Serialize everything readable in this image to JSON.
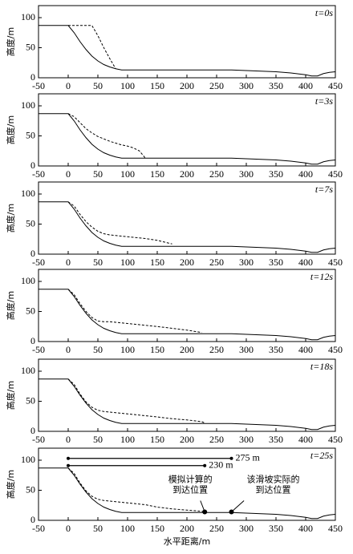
{
  "chart_data": [
    {
      "type": "line",
      "annotation": "t=0s",
      "ylabel": "高度/m",
      "x": [
        -50,
        0,
        10,
        20,
        30,
        40,
        50,
        60,
        70,
        80,
        90,
        100,
        110,
        120,
        130,
        150,
        175,
        200,
        225,
        230,
        250,
        275,
        300,
        325,
        350,
        375,
        400,
        410,
        420,
        430,
        440,
        450
      ],
      "series": [
        {
          "color": "#000000",
          "dash": false,
          "values": [
            87,
            87,
            75,
            60,
            47,
            36,
            28,
            22,
            18,
            15,
            13,
            13,
            13,
            13,
            13,
            13,
            13,
            13,
            13,
            13,
            13,
            13,
            12,
            11,
            10,
            8,
            5,
            3,
            3,
            7,
            9,
            10
          ]
        },
        {
          "color": "#000000",
          "dash": true,
          "values": [
            null,
            87,
            87,
            87,
            87,
            87,
            70,
            50,
            32,
            15,
            null,
            null,
            null,
            null,
            null,
            null,
            null,
            null,
            null,
            null,
            null,
            null,
            null,
            null,
            null,
            null,
            null,
            null,
            null,
            null,
            null,
            null
          ]
        }
      ],
      "xlim": [
        -50,
        450
      ],
      "xticks": [
        -50,
        0,
        50,
        100,
        150,
        200,
        250,
        300,
        350,
        400,
        450
      ],
      "ylim": [
        0,
        120
      ],
      "yticks": [
        0,
        50,
        100
      ]
    },
    {
      "type": "line",
      "annotation": "t=3s",
      "ylabel": "高度/m",
      "x": [
        -50,
        0,
        10,
        20,
        30,
        40,
        50,
        60,
        70,
        80,
        90,
        100,
        110,
        120,
        130,
        150,
        175,
        200,
        225,
        230,
        250,
        275,
        300,
        325,
        350,
        375,
        400,
        410,
        420,
        430,
        440,
        450
      ],
      "series": [
        {
          "color": "#000000",
          "dash": false,
          "values": [
            87,
            87,
            75,
            60,
            47,
            36,
            28,
            22,
            18,
            15,
            13,
            13,
            13,
            13,
            13,
            13,
            13,
            13,
            13,
            13,
            13,
            13,
            12,
            11,
            10,
            8,
            5,
            3,
            3,
            7,
            9,
            10
          ]
        },
        {
          "color": "#000000",
          "dash": true,
          "values": [
            null,
            87,
            82,
            72,
            62,
            55,
            49,
            45,
            41,
            38,
            35,
            33,
            30,
            25,
            13,
            null,
            null,
            null,
            null,
            null,
            null,
            null,
            null,
            null,
            null,
            null,
            null,
            null,
            null,
            null,
            null,
            null
          ]
        }
      ],
      "xlim": [
        -50,
        450
      ],
      "xticks": [
        -50,
        0,
        50,
        100,
        150,
        200,
        250,
        300,
        350,
        400,
        450
      ],
      "ylim": [
        0,
        120
      ],
      "yticks": [
        0,
        50,
        100
      ]
    },
    {
      "type": "line",
      "annotation": "t=7s",
      "ylabel": "高度/m",
      "x": [
        -50,
        0,
        10,
        20,
        30,
        40,
        50,
        60,
        70,
        80,
        90,
        100,
        110,
        120,
        130,
        150,
        175,
        200,
        225,
        230,
        250,
        275,
        300,
        325,
        350,
        375,
        400,
        410,
        420,
        430,
        440,
        450
      ],
      "series": [
        {
          "color": "#000000",
          "dash": false,
          "values": [
            87,
            87,
            75,
            60,
            47,
            36,
            28,
            22,
            18,
            15,
            13,
            13,
            13,
            13,
            13,
            13,
            13,
            13,
            13,
            13,
            13,
            13,
            12,
            11,
            10,
            8,
            5,
            3,
            3,
            7,
            9,
            10
          ]
        },
        {
          "color": "#000000",
          "dash": true,
          "values": [
            null,
            87,
            80,
            66,
            54,
            45,
            38,
            34,
            32,
            31,
            30,
            29,
            28,
            27,
            26,
            23,
            17,
            null,
            null,
            null,
            null,
            null,
            null,
            null,
            null,
            null,
            null,
            null,
            null,
            null,
            null,
            null
          ]
        }
      ],
      "xlim": [
        -50,
        450
      ],
      "xticks": [
        -50,
        0,
        50,
        100,
        150,
        200,
        250,
        300,
        350,
        400,
        450
      ],
      "ylim": [
        0,
        120
      ],
      "yticks": [
        0,
        50,
        100
      ]
    },
    {
      "type": "line",
      "annotation": "t=12s",
      "ylabel": "高度/m",
      "x": [
        -50,
        0,
        10,
        20,
        30,
        40,
        50,
        60,
        70,
        80,
        90,
        100,
        110,
        120,
        130,
        150,
        175,
        200,
        225,
        230,
        250,
        275,
        300,
        325,
        350,
        375,
        400,
        410,
        420,
        430,
        440,
        450
      ],
      "series": [
        {
          "color": "#000000",
          "dash": false,
          "values": [
            87,
            87,
            75,
            60,
            47,
            36,
            28,
            22,
            18,
            15,
            13,
            13,
            13,
            13,
            13,
            13,
            13,
            13,
            13,
            13,
            13,
            13,
            12,
            11,
            10,
            8,
            5,
            3,
            3,
            7,
            9,
            10
          ]
        },
        {
          "color": "#000000",
          "dash": true,
          "values": [
            null,
            87,
            78,
            63,
            50,
            40,
            34,
            33,
            33,
            32,
            31,
            30,
            29,
            28,
            27,
            25,
            22,
            19,
            15,
            null,
            null,
            null,
            null,
            null,
            null,
            null,
            null,
            null,
            null,
            null,
            null,
            null
          ]
        }
      ],
      "xlim": [
        -50,
        450
      ],
      "xticks": [
        -50,
        0,
        50,
        100,
        150,
        200,
        250,
        300,
        350,
        400,
        450
      ],
      "ylim": [
        0,
        120
      ],
      "yticks": [
        0,
        50,
        100
      ]
    },
    {
      "type": "line",
      "annotation": "t=18s",
      "ylabel": "高度/m",
      "x": [
        -50,
        0,
        10,
        20,
        30,
        40,
        50,
        60,
        70,
        80,
        90,
        100,
        110,
        120,
        130,
        150,
        175,
        200,
        225,
        230,
        250,
        275,
        300,
        325,
        350,
        375,
        400,
        410,
        420,
        430,
        440,
        450
      ],
      "series": [
        {
          "color": "#000000",
          "dash": false,
          "values": [
            87,
            87,
            75,
            60,
            47,
            36,
            28,
            22,
            18,
            15,
            13,
            13,
            13,
            13,
            13,
            13,
            13,
            13,
            13,
            13,
            13,
            13,
            12,
            11,
            10,
            8,
            5,
            3,
            3,
            7,
            9,
            10
          ]
        },
        {
          "color": "#000000",
          "dash": true,
          "values": [
            null,
            87,
            78,
            62,
            49,
            40,
            35,
            33,
            32,
            31,
            30,
            29,
            28,
            27,
            26,
            24,
            21,
            19,
            16,
            14,
            null,
            null,
            null,
            null,
            null,
            null,
            null,
            null,
            null,
            null,
            null,
            null
          ]
        }
      ],
      "xlim": [
        -50,
        450
      ],
      "xticks": [
        -50,
        0,
        50,
        100,
        150,
        200,
        250,
        300,
        350,
        400,
        450
      ],
      "ylim": [
        0,
        120
      ],
      "yticks": [
        0,
        50,
        100
      ]
    },
    {
      "type": "line",
      "annotation": "t=25s",
      "ylabel": "高度/m",
      "xlabel": "水平距离/m",
      "x": [
        -50,
        0,
        10,
        20,
        30,
        40,
        50,
        60,
        70,
        80,
        90,
        100,
        110,
        120,
        130,
        150,
        175,
        200,
        225,
        230,
        250,
        275,
        300,
        325,
        350,
        375,
        400,
        410,
        420,
        430,
        440,
        450
      ],
      "series": [
        {
          "color": "#000000",
          "dash": false,
          "values": [
            87,
            87,
            75,
            60,
            47,
            36,
            28,
            22,
            18,
            15,
            13,
            13,
            13,
            13,
            13,
            13,
            13,
            13,
            13,
            13,
            13,
            13,
            12,
            11,
            10,
            8,
            5,
            3,
            3,
            7,
            9,
            10
          ]
        },
        {
          "color": "#000000",
          "dash": true,
          "values": [
            null,
            87,
            78,
            62,
            49,
            40,
            35,
            33,
            32,
            31,
            30,
            29,
            28,
            27,
            26,
            22,
            19,
            17,
            15,
            14,
            null,
            null,
            null,
            null,
            null,
            null,
            null,
            null,
            null,
            null,
            null,
            null
          ]
        }
      ],
      "segments": [
        {
          "x": [
            0,
            275
          ],
          "y": 103,
          "label": "275 m"
        },
        {
          "x": [
            0,
            230
          ],
          "y": 91,
          "label": "230 m"
        }
      ],
      "markers": [
        {
          "x": 230,
          "y": 14,
          "label": [
            "模拟计算的",
            "到达位置"
          ]
        },
        {
          "x": 275,
          "y": 14,
          "label": [
            "该滑坡实际的",
            "到达位置"
          ]
        }
      ],
      "xlim": [
        -50,
        450
      ],
      "xticks": [
        -50,
        0,
        50,
        100,
        150,
        200,
        250,
        300,
        350,
        400,
        450
      ],
      "ylim": [
        0,
        120
      ],
      "yticks": [
        0,
        50,
        100
      ]
    }
  ]
}
